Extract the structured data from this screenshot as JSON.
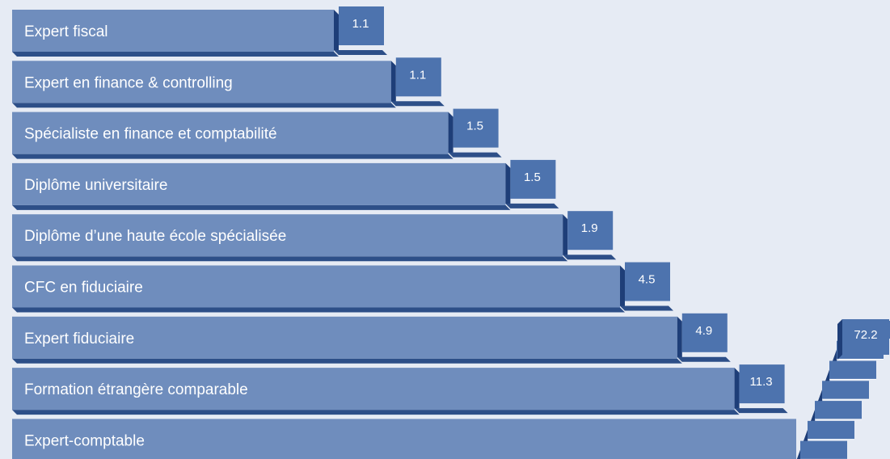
{
  "chart_data": {
    "type": "bar",
    "orientation": "horizontal",
    "categories": [
      "Expert fiscal",
      "Expert en finance & controlling",
      "Spécialiste en finance et comptabilité",
      "Diplôme universitaire",
      "Diplôme d’une haute école spécialisée",
      "CFC en fiduciaire",
      "Expert fiduciaire",
      "Formation étrangère comparable",
      "Expert-comptable"
    ],
    "values": [
      1.1,
      1.1,
      1.5,
      1.5,
      1.9,
      4.5,
      4.9,
      11.3,
      72.2
    ],
    "value_labels": [
      "1.1",
      "1.1",
      "1.5",
      "1.5",
      "1.9",
      "4.5",
      "4.9",
      "11.3",
      "72.2"
    ],
    "title": "",
    "xlabel": "",
    "ylabel": "",
    "grid": false,
    "legend": "none"
  },
  "colors": {
    "background": "#e6ebf4",
    "bar_fill": "#6f8dbd",
    "bar_right_face": "#3f64a0",
    "bar_bottom_face": "#2d4f88",
    "label_box_top": "#4d73ae",
    "label_box_side": "#1e3e78",
    "text": "#ffffff"
  }
}
